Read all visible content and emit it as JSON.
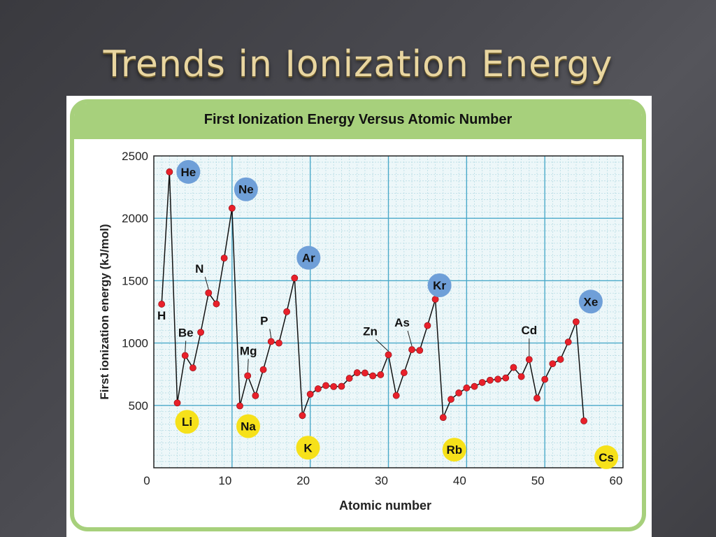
{
  "slide": {
    "title": "Trends in Ionization Energy"
  },
  "chart_data": {
    "type": "line",
    "title": "First Ionization Energy Versus Atomic Number",
    "xlabel": "Atomic number",
    "ylabel": "First ionization energy (kJ/mol)",
    "xlim": [
      0,
      60
    ],
    "ylim": [
      0,
      2500
    ],
    "x_ticks": [
      0,
      10,
      20,
      30,
      40,
      50,
      60
    ],
    "y_ticks": [
      500,
      1000,
      1500,
      2000,
      2500
    ],
    "grid": true,
    "series": [
      {
        "x": [
          1,
          2,
          3,
          4,
          5,
          6,
          7,
          8,
          9,
          10,
          11,
          12,
          13,
          14,
          15,
          16,
          17,
          18,
          19,
          20,
          21,
          22,
          23,
          24,
          25,
          26,
          27,
          28,
          29,
          30,
          31,
          32,
          33,
          34,
          35,
          36,
          37,
          38,
          39,
          40,
          41,
          42,
          43,
          44,
          45,
          46,
          47,
          48,
          49,
          50,
          51,
          52,
          53,
          54,
          55
        ],
        "y": [
          1312,
          2372,
          520,
          900,
          801,
          1086,
          1402,
          1314,
          1681,
          2081,
          496,
          738,
          578,
          787,
          1012,
          1000,
          1251,
          1521,
          419,
          590,
          633,
          659,
          651,
          653,
          717,
          762,
          760,
          737,
          746,
          906,
          579,
          762,
          947,
          941,
          1140,
          1351,
          403,
          549,
          600,
          640,
          652,
          684,
          702,
          710,
          720,
          804,
          731,
          868,
          558,
          709,
          834,
          869,
          1008,
          1170,
          376
        ]
      }
    ],
    "annotations": [
      {
        "label": "He",
        "x": 2,
        "y": 2372,
        "style": "blue"
      },
      {
        "label": "Ne",
        "x": 10,
        "y": 2081,
        "style": "blue"
      },
      {
        "label": "Ar",
        "x": 18,
        "y": 1521,
        "style": "blue"
      },
      {
        "label": "Kr",
        "x": 36,
        "y": 1351,
        "style": "blue"
      },
      {
        "label": "Xe",
        "x": 54,
        "y": 1170,
        "style": "blue"
      },
      {
        "label": "Li",
        "x": 3,
        "y": 520,
        "style": "yellow"
      },
      {
        "label": "Na",
        "x": 11,
        "y": 496,
        "style": "yellow"
      },
      {
        "label": "K",
        "x": 19,
        "y": 419,
        "style": "yellow"
      },
      {
        "label": "Rb",
        "x": 37,
        "y": 403,
        "style": "yellow"
      },
      {
        "label": "Cs",
        "x": 55,
        "y": 376,
        "style": "yellow"
      },
      {
        "label": "H",
        "x": 1,
        "y": 1312,
        "style": "text"
      },
      {
        "label": "Be",
        "x": 4,
        "y": 900,
        "style": "text"
      },
      {
        "label": "N",
        "x": 7,
        "y": 1402,
        "style": "text"
      },
      {
        "label": "Mg",
        "x": 12,
        "y": 738,
        "style": "text"
      },
      {
        "label": "P",
        "x": 15,
        "y": 1012,
        "style": "text"
      },
      {
        "label": "Zn",
        "x": 30,
        "y": 906,
        "style": "text"
      },
      {
        "label": "As",
        "x": 33,
        "y": 947,
        "style": "text"
      },
      {
        "label": "Cd",
        "x": 48,
        "y": 868,
        "style": "text"
      }
    ]
  }
}
